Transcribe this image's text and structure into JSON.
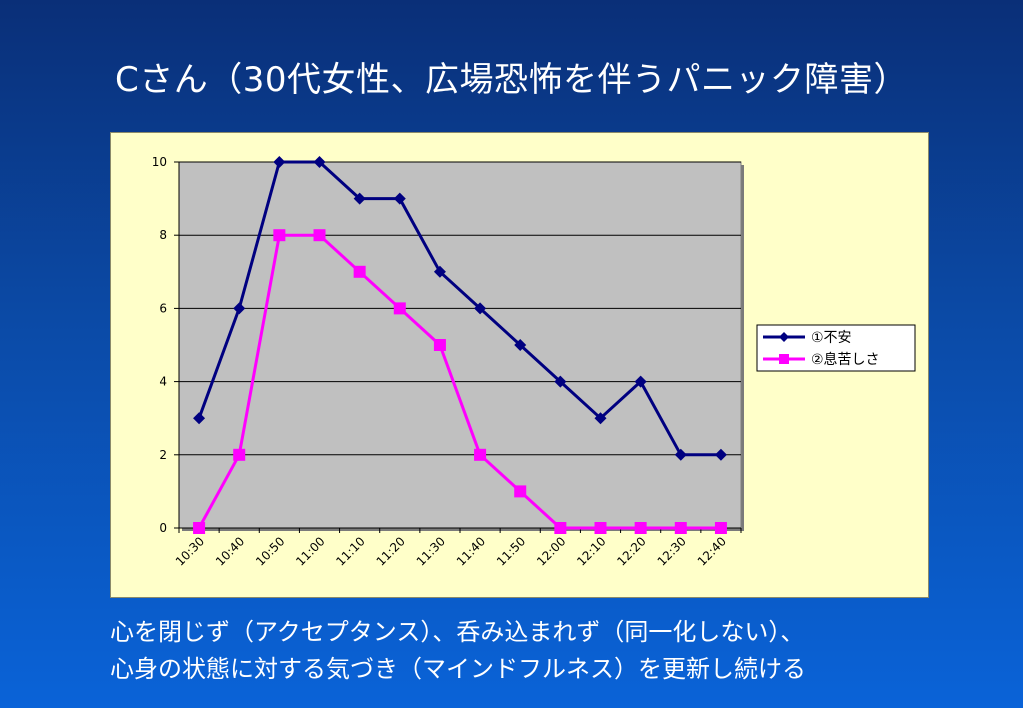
{
  "slide": {
    "title": "Cさん（30代女性、広場恐怖を伴うパニック障害）",
    "caption_lines": [
      "心を閉じず（アクセプタンス）、呑み込まれず（同一化しない）、",
      "心身の状態に対する気づき（マインドフルネス）を更新し続ける"
    ]
  },
  "chart_data": {
    "type": "line",
    "title": "",
    "xlabel": "",
    "ylabel": "",
    "categories": [
      "10:30",
      "10:40",
      "10:50",
      "11:00",
      "11:10",
      "11:20",
      "11:30",
      "11:40",
      "11:50",
      "12:00",
      "12:10",
      "12:20",
      "12:30",
      "12:40"
    ],
    "ylim": [
      0,
      10
    ],
    "yticks": [
      0,
      2,
      4,
      6,
      8,
      10
    ],
    "grid": true,
    "legend_position": "right",
    "plot_background": "#c0c0c0",
    "panel_background": "#ffffc9",
    "series": [
      {
        "name": "①不安",
        "color": "#000080",
        "marker": "diamond",
        "values": [
          3,
          6,
          10,
          10,
          9,
          9,
          7,
          6,
          5,
          4,
          3,
          4,
          2,
          2
        ]
      },
      {
        "name": "②息苦しさ",
        "color": "#ff00ff",
        "marker": "square",
        "values": [
          0,
          2,
          8,
          8,
          7,
          6,
          5,
          2,
          1,
          0,
          0,
          0,
          0,
          0
        ]
      }
    ]
  }
}
